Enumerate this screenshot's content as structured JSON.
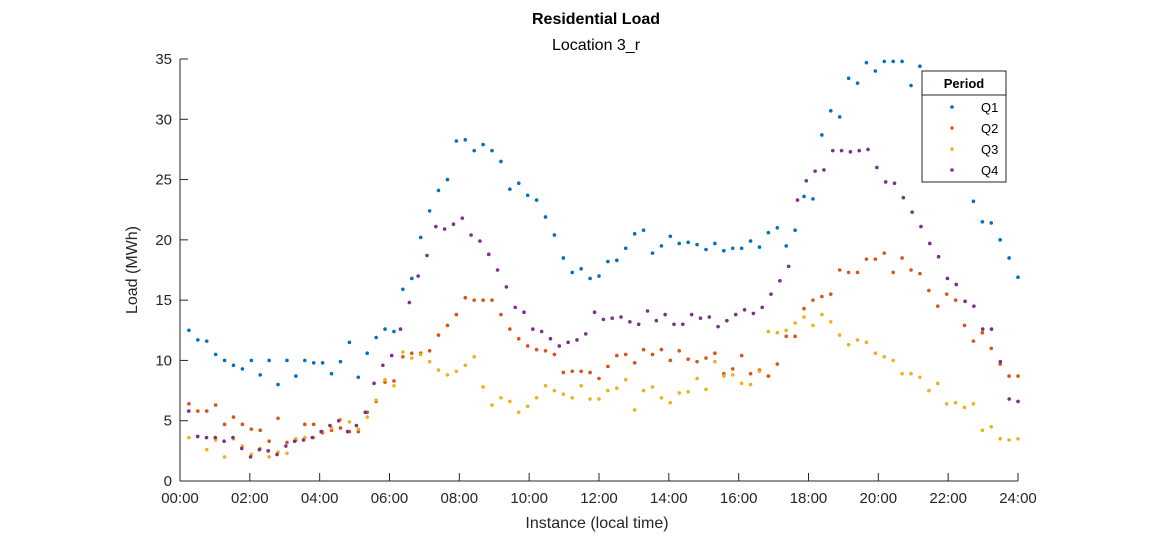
{
  "chart_data": {
    "type": "scatter",
    "title": "Residential Load",
    "subtitle": "Location 3_r",
    "xlabel": "Instance (local time)",
    "ylabel": "Load (MWh)",
    "xlim": [
      0,
      24
    ],
    "ylim": [
      0,
      35
    ],
    "x_ticks": [
      "00:00",
      "02:00",
      "04:00",
      "06:00",
      "08:00",
      "10:00",
      "12:00",
      "14:00",
      "16:00",
      "18:00",
      "20:00",
      "22:00",
      "24:00"
    ],
    "y_ticks": [
      0,
      5,
      10,
      15,
      20,
      25,
      30,
      35
    ],
    "grid": false,
    "legend": {
      "title": "Period",
      "placement": "top-right"
    },
    "series": [
      {
        "name": "Q1",
        "color": "#0072BD",
        "values": [
          12.5,
          11.7,
          11.6,
          10.5,
          10.0,
          9.6,
          9.3,
          10.0,
          8.8,
          10.0,
          8.0,
          10.0,
          8.7,
          10.0,
          9.8,
          9.8,
          8.9,
          9.9,
          11.5,
          8.6,
          10.6,
          11.9,
          12.6,
          12.4,
          15.9,
          16.8,
          20.2,
          22.4,
          24.1,
          25.0,
          28.2,
          28.3,
          27.4,
          27.9,
          27.4,
          26.5,
          24.2,
          24.7,
          23.7,
          23.3,
          21.9,
          20.4,
          18.5,
          17.3,
          17.6,
          16.8,
          17.0,
          18.2,
          18.3,
          19.3,
          20.5,
          20.8,
          18.9,
          19.5,
          20.3,
          19.7,
          19.8,
          19.6,
          19.2,
          19.7,
          19.1,
          19.3,
          19.3,
          19.9,
          19.4,
          20.6,
          21.0,
          19.5,
          20.8,
          23.6,
          23.4,
          28.7,
          30.7,
          30.2,
          33.4,
          33.0,
          34.7,
          34.0,
          34.8,
          34.8,
          34.8,
          32.8,
          34.4,
          30.4,
          31.0,
          29.0,
          27.3,
          27.5,
          23.2,
          21.5,
          21.4,
          20.0,
          18.5,
          16.9
        ]
      },
      {
        "name": "Q2",
        "color": "#D95319",
        "values": [
          6.4,
          5.8,
          5.8,
          6.3,
          4.7,
          5.3,
          4.7,
          4.3,
          4.2,
          3.3,
          5.2,
          3.2,
          3.4,
          4.7,
          4.7,
          4.0,
          4.2,
          4.4,
          4.1,
          4.1,
          5.7,
          6.6,
          8.2,
          8.3,
          10.3,
          10.6,
          10.6,
          10.8,
          12.1,
          12.9,
          13.8,
          15.2,
          15.0,
          15.0,
          15.0,
          13.8,
          12.6,
          11.8,
          11.2,
          10.9,
          10.8,
          10.5,
          9.0,
          9.1,
          9.1,
          9.0,
          8.5,
          9.5,
          10.4,
          10.5,
          9.8,
          10.9,
          10.5,
          10.9,
          10.0,
          10.8,
          10.1,
          9.9,
          10.2,
          10.6,
          8.9,
          9.3,
          10.4,
          8.9,
          9.2,
          8.7,
          9.7,
          12.0,
          12.0,
          14.3,
          15.0,
          15.3,
          15.5,
          17.5,
          17.3,
          17.3,
          18.4,
          18.4,
          18.9,
          17.3,
          18.5,
          17.5,
          17.2,
          15.8,
          14.5,
          15.5,
          15.0,
          12.9,
          11.6,
          12.3,
          11.0,
          9.7,
          8.7,
          8.7
        ]
      },
      {
        "name": "Q3",
        "color": "#EDB120",
        "values": [
          3.6,
          3.7,
          2.6,
          3.4,
          2.0,
          3.5,
          2.9,
          2.2,
          2.7,
          2.0,
          2.4,
          2.3,
          3.5,
          3.6,
          3.6,
          4.1,
          4.4,
          5.1,
          4.9,
          4.3,
          5.3,
          6.7,
          8.4,
          7.9,
          10.7,
          10.2,
          10.5,
          9.9,
          9.2,
          8.8,
          9.1,
          9.6,
          10.3,
          7.8,
          6.3,
          6.9,
          6.6,
          5.7,
          6.2,
          6.9,
          7.9,
          7.5,
          7.2,
          6.9,
          7.9,
          6.8,
          6.8,
          7.5,
          7.7,
          8.4,
          5.9,
          7.5,
          7.8,
          6.9,
          6.5,
          7.3,
          7.4,
          8.5,
          7.6,
          9.9,
          8.7,
          8.8,
          8.1,
          8.0,
          9.1,
          12.4,
          12.3,
          12.5,
          13.1,
          13.6,
          12.9,
          13.8,
          13.2,
          12.1,
          11.3,
          11.7,
          11.5,
          10.6,
          10.3,
          10.0,
          8.9,
          8.9,
          8.6,
          7.5,
          8.1,
          6.4,
          6.5,
          6.1,
          6.4,
          4.2,
          4.5,
          3.5,
          3.4,
          3.5
        ]
      },
      {
        "name": "Q4",
        "color": "#7E2F8E",
        "values": [
          5.8,
          3.7,
          3.6,
          3.6,
          3.3,
          3.6,
          2.7,
          2.0,
          2.6,
          2.5,
          2.2,
          2.9,
          3.3,
          3.4,
          3.6,
          4.1,
          4.6,
          5.0,
          4.1,
          4.6,
          5.7,
          8.1,
          9.6,
          10.4,
          12.6,
          14.8,
          17.0,
          18.7,
          21.1,
          20.9,
          21.3,
          21.8,
          20.4,
          19.9,
          18.8,
          17.5,
          16.1,
          14.4,
          14.0,
          12.6,
          12.4,
          11.8,
          11.2,
          11.5,
          11.7,
          12.2,
          14.0,
          13.4,
          13.5,
          13.6,
          13.2,
          13.0,
          14.1,
          13.3,
          13.8,
          13.0,
          13.0,
          13.8,
          13.5,
          13.6,
          12.8,
          13.3,
          13.8,
          14.2,
          13.9,
          14.4,
          15.5,
          16.6,
          17.8,
          23.3,
          24.9,
          25.7,
          25.8,
          27.4,
          27.4,
          27.3,
          27.4,
          27.5,
          26.0,
          24.8,
          24.7,
          23.5,
          22.3,
          21.1,
          19.7,
          18.6,
          16.8,
          16.3,
          14.9,
          14.5,
          12.6,
          12.6,
          9.9,
          6.8,
          6.6
        ]
      }
    ]
  }
}
